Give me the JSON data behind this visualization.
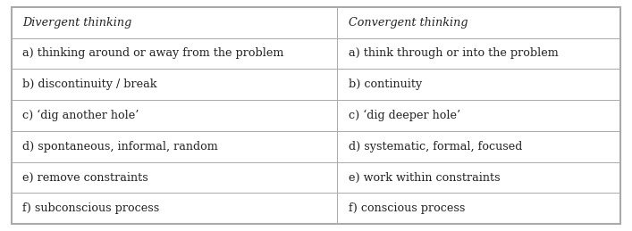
{
  "col1_header": "Divergent thinking",
  "col2_header": "Convergent thinking",
  "rows": [
    [
      "a) thinking around or away from the problem",
      "a) think through or into the problem"
    ],
    [
      "b) discontinuity / break",
      "b) continuity"
    ],
    [
      "c) ‘dig another hole’",
      "c) ‘dig deeper hole’"
    ],
    [
      "d) spontaneous, informal, random",
      "d) systematic, formal, focused"
    ],
    [
      "e) remove constraints",
      "e) work within constraints"
    ],
    [
      "f) subconscious process",
      "f) conscious process"
    ]
  ],
  "bg_color": "#ffffff",
  "border_color": "#aaaaaa",
  "text_color": "#222222",
  "header_fontsize": 9.2,
  "cell_fontsize": 9.2,
  "col_split": 0.535,
  "outer_lw": 1.5,
  "inner_lw": 0.7
}
